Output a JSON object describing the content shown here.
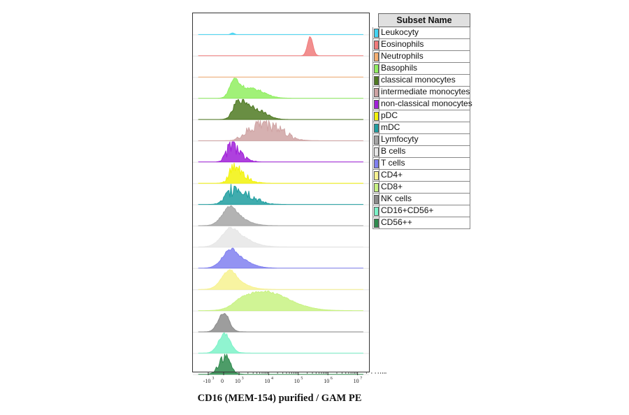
{
  "chart_data": {
    "type": "histogram-overlay",
    "xlabel": "CD16 (MEM-154) purified / GAM PE",
    "x_scale": "biexponential",
    "x_ticks": [
      {
        "value": -1000,
        "label": "-10",
        "exp": "3"
      },
      {
        "value": 0,
        "label": "0",
        "exp": ""
      },
      {
        "value": 1000,
        "label": "10",
        "exp": "3"
      },
      {
        "value": 10000,
        "label": "10",
        "exp": "4"
      },
      {
        "value": 100000,
        "label": "10",
        "exp": "5"
      },
      {
        "value": 1000000,
        "label": "10",
        "exp": "6"
      },
      {
        "value": 10000000,
        "label": "10",
        "exp": "7"
      }
    ],
    "legend_title": "Subset Name",
    "series": [
      {
        "name": "Leukocyty",
        "color": "#44d4f2",
        "components": [
          {
            "c": 0.58,
            "s": 0.11,
            "a": 0.08
          },
          {
            "c": 5.75,
            "s": 0.085,
            "a": 1.0
          }
        ],
        "noise": 0.01
      },
      {
        "name": "Eosinophils",
        "color": "#f07b7b",
        "components": [
          {
            "c": 3.4,
            "s": 0.09,
            "a": 1.0
          }
        ],
        "noise": 0.03
      },
      {
        "name": "Neutrophils",
        "color": "#f5ae70",
        "components": [
          {
            "c": 5.75,
            "s": 0.085,
            "a": 1.0
          }
        ],
        "noise": 0.01
      },
      {
        "name": "Basophils",
        "color": "#90ee60",
        "components": [
          {
            "c": 0.7,
            "s": 0.3,
            "a": 1.0
          },
          {
            "c": 1.5,
            "s": 0.38,
            "a": 0.45
          }
        ],
        "noise": 0.15
      },
      {
        "name": "classical monocytes",
        "color": "#4f7a22",
        "components": [
          {
            "c": 1.0,
            "s": 0.35,
            "a": 1.0
          },
          {
            "c": 1.7,
            "s": 0.3,
            "a": 0.35
          }
        ],
        "noise": 0.2
      },
      {
        "name": "intermediate monocytes",
        "color": "#cfa3a3",
        "components": [
          {
            "c": 1.9,
            "s": 0.5,
            "a": 1.0
          }
        ],
        "noise": 0.55
      },
      {
        "name": "non-classical monocytes",
        "color": "#a020d8",
        "components": [
          {
            "c": 0.6,
            "s": 0.35,
            "a": 1.0
          }
        ],
        "noise": 0.55
      },
      {
        "name": "pDC",
        "color": "#f2f20a",
        "components": [
          {
            "c": 0.8,
            "s": 0.35,
            "a": 1.0
          }
        ],
        "noise": 0.55
      },
      {
        "name": "mDC",
        "color": "#1f9ea0",
        "components": [
          {
            "c": 0.8,
            "s": 0.5,
            "a": 1.0
          }
        ],
        "noise": 0.55
      },
      {
        "name": "Lymfocyty",
        "color": "#a6a6a6",
        "components": [
          {
            "c": 0.45,
            "s": 0.52,
            "a": 1.0
          }
        ],
        "noise": 0.08
      },
      {
        "name": "B cells",
        "color": "#e6e6e6",
        "components": [
          {
            "c": 0.5,
            "s": 0.6,
            "a": 1.0
          }
        ],
        "noise": 0.08
      },
      {
        "name": "T cells",
        "color": "#8080f0",
        "components": [
          {
            "c": 0.5,
            "s": 0.55,
            "a": 1.0
          }
        ],
        "noise": 0.08
      },
      {
        "name": "CD4+",
        "color": "#f7f291",
        "components": [
          {
            "c": 0.4,
            "s": 0.52,
            "a": 1.0
          }
        ],
        "noise": 0.05
      },
      {
        "name": "CD8+",
        "color": "#c8f282",
        "components": [
          {
            "c": 1.8,
            "s": 0.85,
            "a": 1.0
          }
        ],
        "noise": 0.06
      },
      {
        "name": "NK cells",
        "color": "#8c8c8c",
        "components": [
          {
            "c": 0.0,
            "s": 0.35,
            "a": 1.0
          }
        ],
        "noise": 0.12
      },
      {
        "name": "CD16+CD56+",
        "color": "#7cf2c8",
        "components": [
          {
            "c": 0.05,
            "s": 0.38,
            "a": 1.0
          }
        ],
        "noise": 0.1
      },
      {
        "name": "CD56++",
        "color": "#2e8b4e",
        "components": [
          {
            "c": 0.05,
            "s": 0.35,
            "a": 1.0
          }
        ],
        "noise": 0.35
      }
    ]
  }
}
